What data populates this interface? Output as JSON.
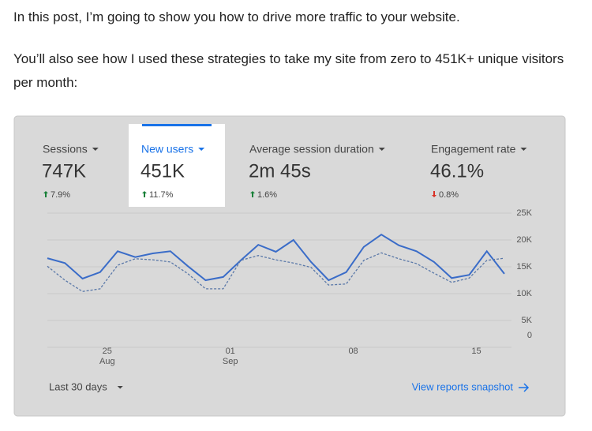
{
  "post": {
    "paragraphs": [
      "In this post, I’m going to show you how to drive more traffic to your website.",
      "You’ll also see how I used these strategies to take my site from zero to 451K+ unique visitors per month:"
    ]
  },
  "card": {
    "metrics": [
      {
        "label": "Sessions",
        "value": "747K",
        "change": "7.9%",
        "direction": "up"
      },
      {
        "label": "New users",
        "value": "451K",
        "change": "11.7%",
        "direction": "up",
        "selected": true
      },
      {
        "label": "Average session duration",
        "value": "2m 45s",
        "change": "1.6%",
        "direction": "up"
      },
      {
        "label": "Engagement rate",
        "value": "46.1%",
        "change": "0.8%",
        "direction": "down"
      }
    ],
    "date_range": "Last 30 days",
    "link": "View reports snapshot"
  },
  "chart_data": {
    "type": "line",
    "categories": [
      null,
      null,
      null,
      "25",
      null,
      null,
      null,
      null,
      null,
      null,
      "01",
      null,
      null,
      null,
      null,
      null,
      null,
      "08",
      null,
      null,
      null,
      null,
      null,
      null,
      "15",
      null,
      null
    ],
    "category_sublabels": [
      null,
      null,
      null,
      "Aug",
      null,
      null,
      null,
      null,
      null,
      null,
      "Sep",
      null,
      null,
      null,
      null,
      null,
      null,
      null,
      null,
      null,
      null,
      null,
      null,
      null,
      null,
      null,
      null
    ],
    "series": [
      {
        "color": "#3a6cc8",
        "dash": false,
        "values": [
          16600,
          15700,
          12800,
          14000,
          17900,
          16800,
          17500,
          17900,
          15100,
          12500,
          13100,
          16200,
          19100,
          17800,
          20000,
          15900,
          12500,
          14000,
          18700,
          21000,
          19000,
          17900,
          15900,
          12900,
          13500,
          17900,
          13700
        ]
      },
      {
        "color": "#5a78a8",
        "dash": true,
        "values": [
          15100,
          12500,
          10400,
          10900,
          15300,
          16500,
          16300,
          15900,
          13700,
          10900,
          10900,
          16200,
          17100,
          16300,
          15700,
          14900,
          11600,
          11800,
          16200,
          17600,
          16500,
          15600,
          13800,
          12100,
          12900,
          16200,
          16600
        ]
      }
    ],
    "ylim": [
      0,
      25000
    ],
    "yticks": [
      0,
      {
        "value": 5000,
        "label": "5K"
      },
      {
        "value": 10000,
        "label": "10K"
      },
      {
        "value": 15000,
        "label": "15K"
      },
      {
        "value": 20000,
        "label": "20K"
      },
      {
        "value": 25000,
        "label": "25K"
      }
    ],
    "grid": true
  }
}
